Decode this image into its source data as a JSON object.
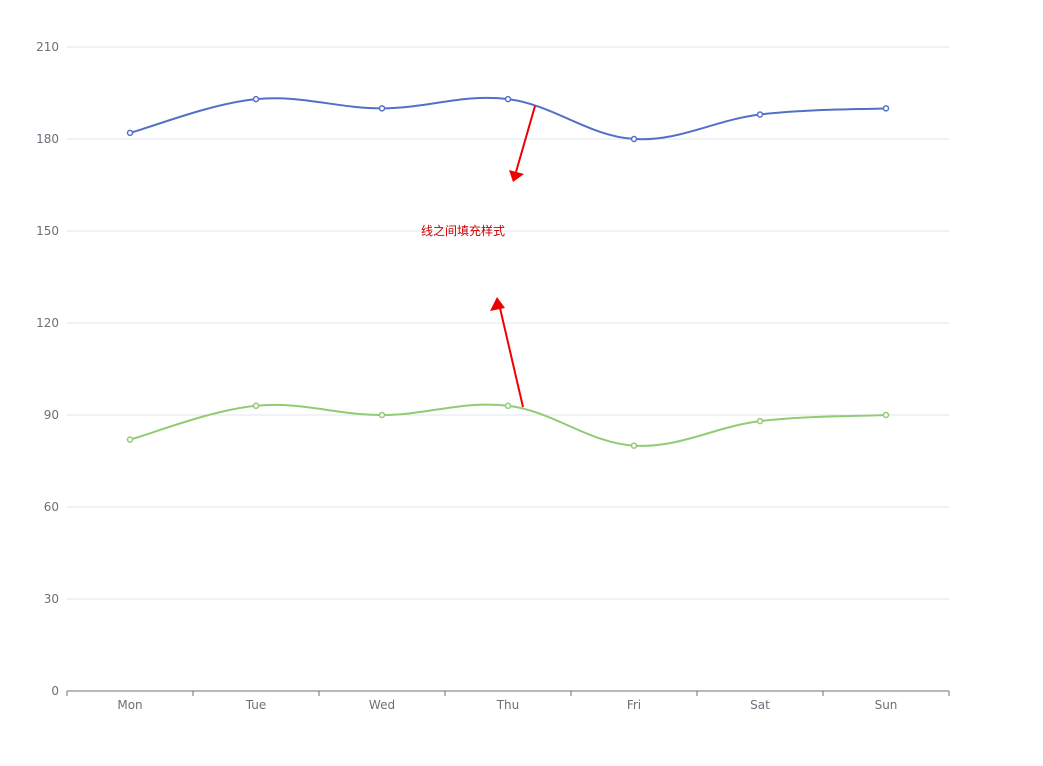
{
  "chart_data": {
    "type": "line",
    "smooth": true,
    "categories": [
      "Mon",
      "Tue",
      "Wed",
      "Thu",
      "Fri",
      "Sat",
      "Sun"
    ],
    "series": [
      {
        "values": [
          182,
          193,
          190,
          193,
          180,
          188,
          190
        ],
        "color": "#5470c6"
      },
      {
        "values": [
          82,
          93,
          90,
          93,
          80,
          88,
          90
        ],
        "color": "#91cc75"
      }
    ],
    "ylim": [
      0,
      210
    ],
    "yticks": [
      0,
      30,
      60,
      90,
      120,
      150,
      180,
      210
    ],
    "grid": true,
    "annotation": {
      "text": "线之间填充样式",
      "color": "#cc0000"
    }
  }
}
